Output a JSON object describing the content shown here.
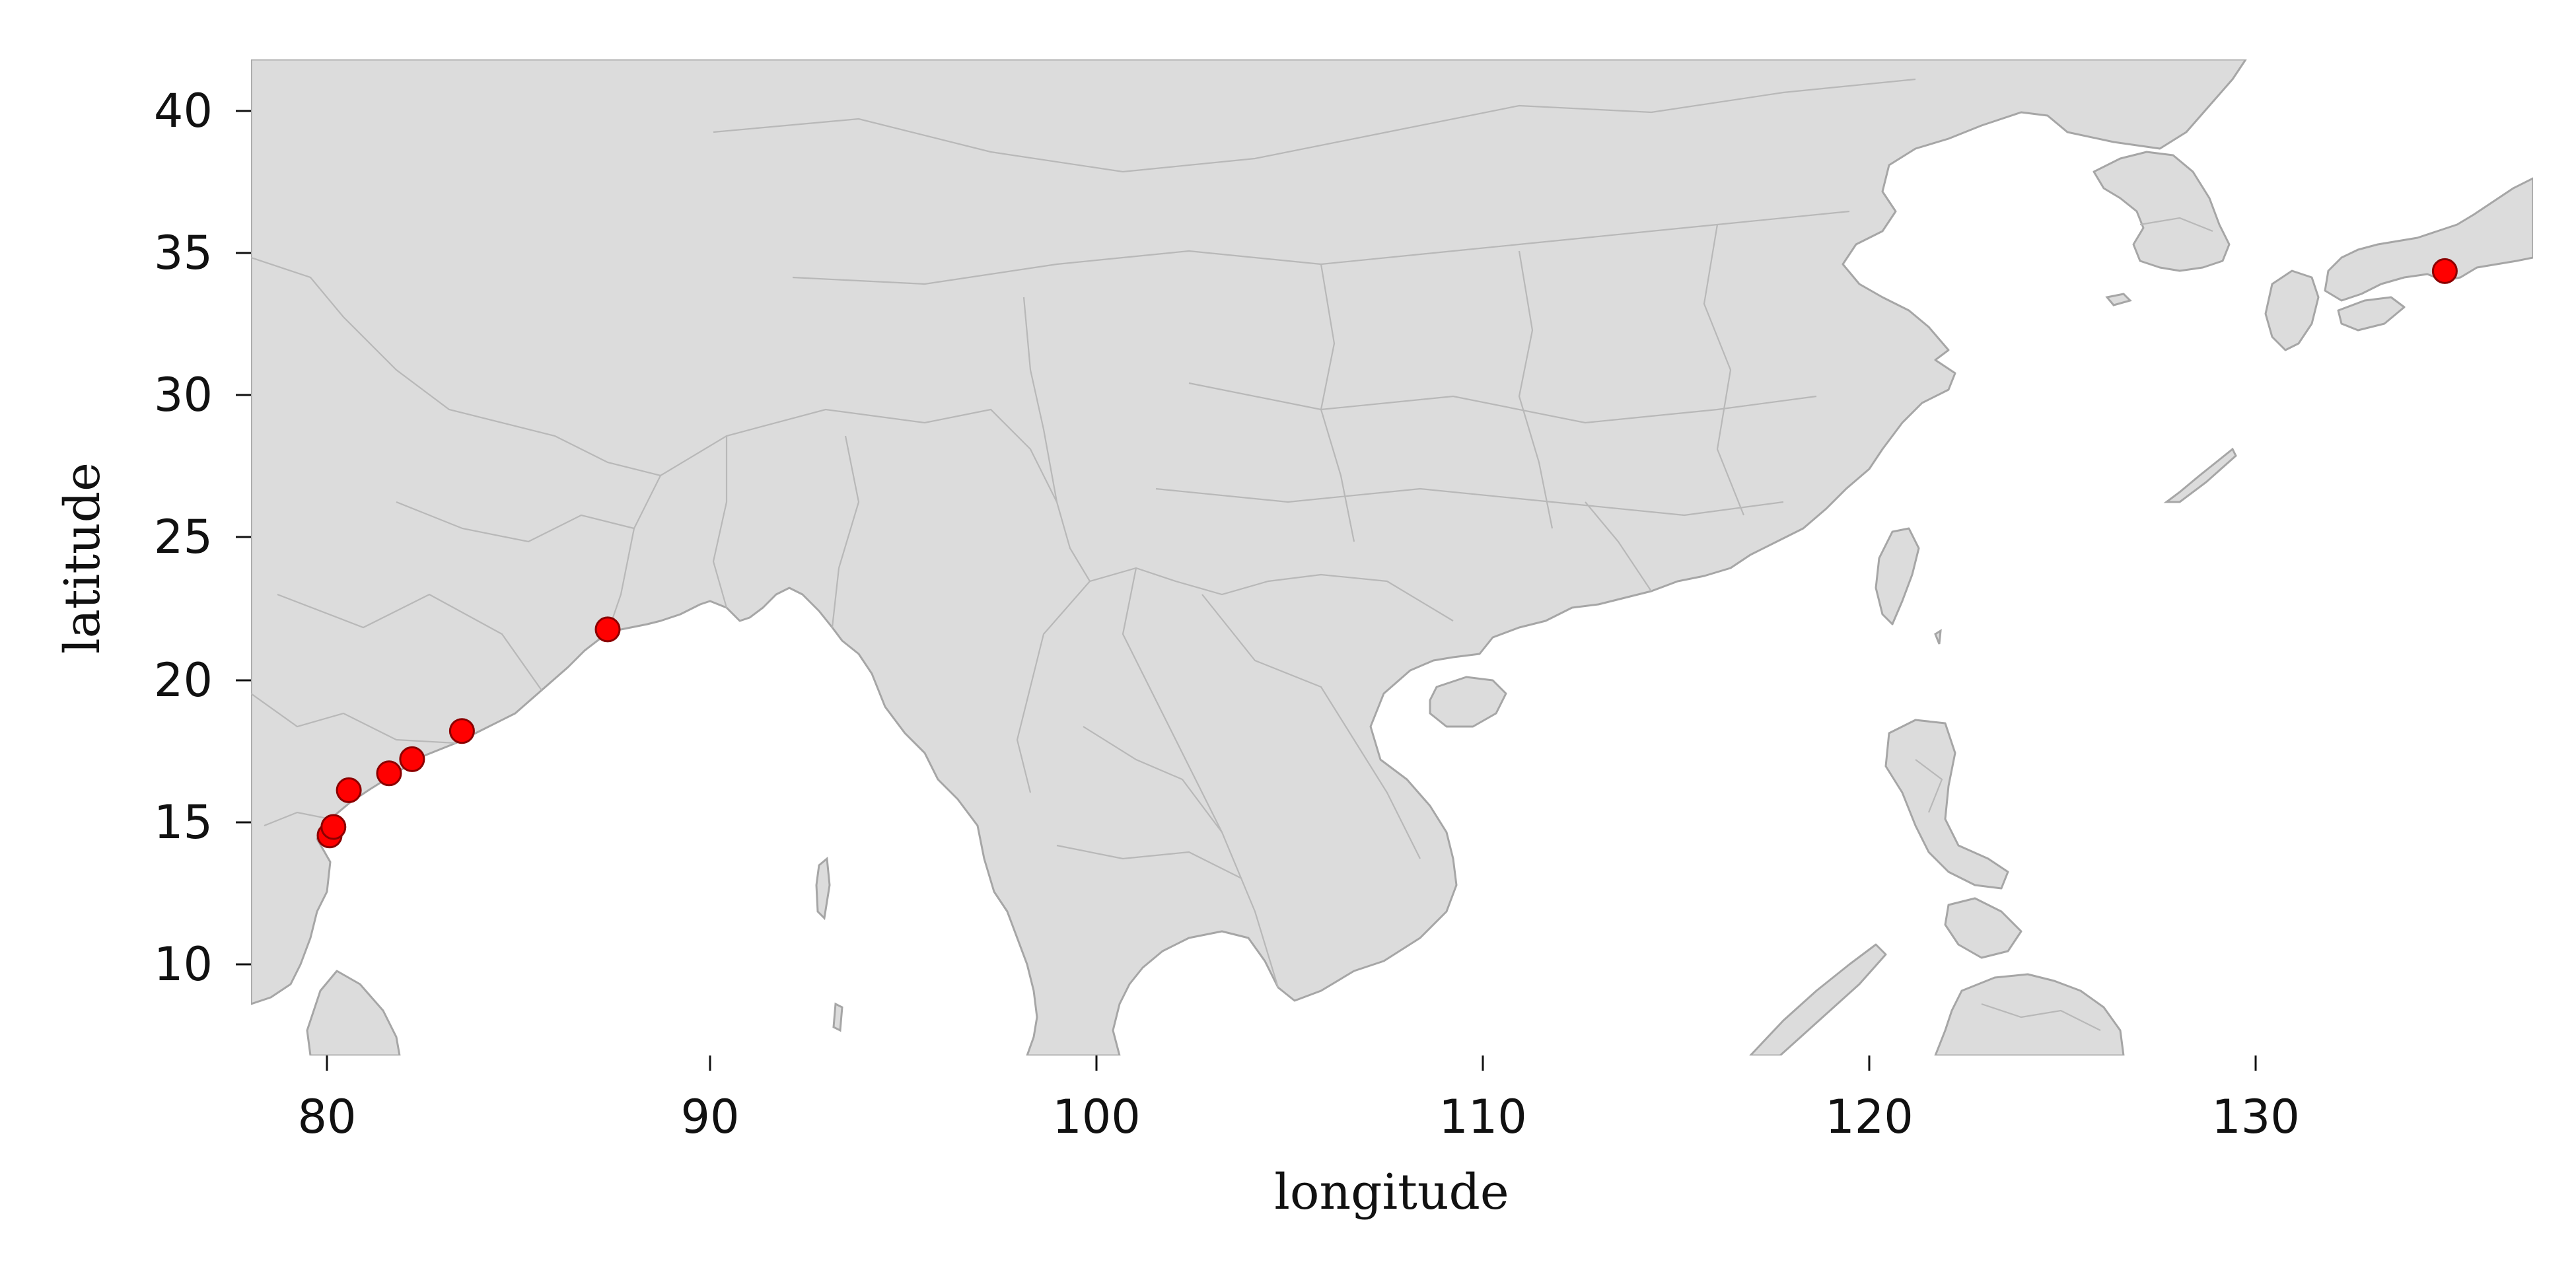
{
  "chart_data": {
    "type": "scatter",
    "xlabel": "longitude",
    "ylabel": "latitude",
    "xlim": [
      78,
      137.5
    ],
    "ylim": [
      6.5,
      41.8
    ],
    "xticks": [
      "80",
      "90",
      "100",
      "110",
      "120",
      "130"
    ],
    "yticks": [
      "10",
      "15",
      "20",
      "25",
      "30",
      "35",
      "40"
    ],
    "basemap": "land in light grey with grey coastlines and administrative borders; sea in white",
    "marker_color": "#ff0000",
    "marker_edge_color": "#8b0000",
    "land_color": "#dcdcdc",
    "border_color": "#a6a6a6",
    "points": [
      {
        "lon": 80.05,
        "lat": 14.3
      },
      {
        "lon": 80.15,
        "lat": 14.6
      },
      {
        "lon": 80.55,
        "lat": 15.9
      },
      {
        "lon": 81.6,
        "lat": 16.5
      },
      {
        "lon": 82.2,
        "lat": 17.0
      },
      {
        "lon": 83.5,
        "lat": 18.0
      },
      {
        "lon": 87.3,
        "lat": 21.6
      },
      {
        "lon": 135.2,
        "lat": 34.3
      }
    ]
  }
}
